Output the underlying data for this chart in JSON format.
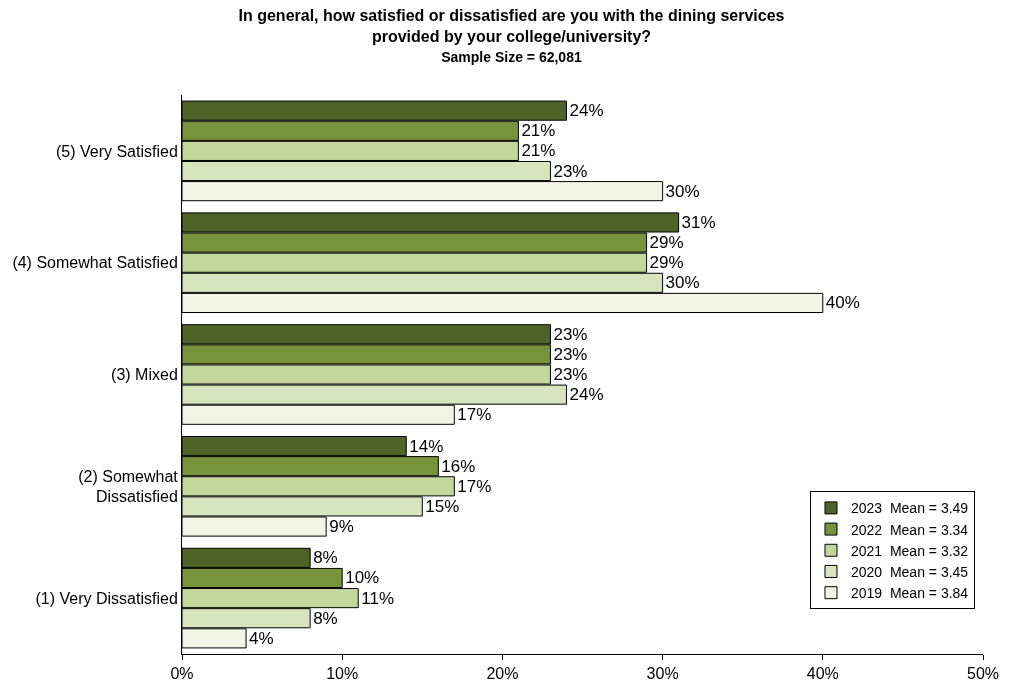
{
  "chart_data": {
    "type": "bar",
    "orientation": "horizontal",
    "title": "In general, how satisfied or dissatisfied are you with the dining services provided by your college/university?",
    "subtitle": "Sample Size = 62,081",
    "categories": [
      "(5) Very Satisfied",
      "(4) Somewhat Satisfied",
      "(3) Mixed",
      "(2) Somewhat Dissatisfied",
      "(1) Very Dissatisfied"
    ],
    "series": [
      {
        "name": "2023  Mean = 3.49",
        "color": "#4f6228",
        "values": [
          24,
          31,
          23,
          14,
          8
        ],
        "value_labels": [
          "24%",
          "31%",
          "23%",
          "14%",
          "8%"
        ]
      },
      {
        "name": "2022  Mean = 3.34",
        "color": "#77933c",
        "values": [
          21,
          29,
          23,
          16,
          10
        ],
        "value_labels": [
          "21%",
          "29%",
          "23%",
          "16%",
          "10%"
        ]
      },
      {
        "name": "2021  Mean = 3.32",
        "color": "#c3d69b",
        "values": [
          21,
          29,
          23,
          17,
          11
        ],
        "value_labels": [
          "21%",
          "29%",
          "23%",
          "17%",
          "11%"
        ]
      },
      {
        "name": "2020  Mean = 3.45",
        "color": "#d7e4bd",
        "values": [
          23,
          30,
          24,
          15,
          8
        ],
        "value_labels": [
          "23%",
          "30%",
          "24%",
          "15%",
          "8%"
        ]
      },
      {
        "name": "2019  Mean = 3.84",
        "color": "#f2f5e6",
        "values": [
          30,
          40,
          17,
          9,
          4
        ],
        "value_labels": [
          "30%",
          "40%",
          "17%",
          "9%",
          "4%"
        ]
      }
    ],
    "xlim": [
      0,
      50
    ],
    "xticks": [
      {
        "value": 0,
        "label": "0%"
      },
      {
        "value": 10,
        "label": "10%"
      },
      {
        "value": 20,
        "label": "20%"
      },
      {
        "value": 30,
        "label": "30%"
      },
      {
        "value": 40,
        "label": "40%"
      },
      {
        "value": 50,
        "label": "50%"
      }
    ],
    "legend": "bottom right"
  }
}
